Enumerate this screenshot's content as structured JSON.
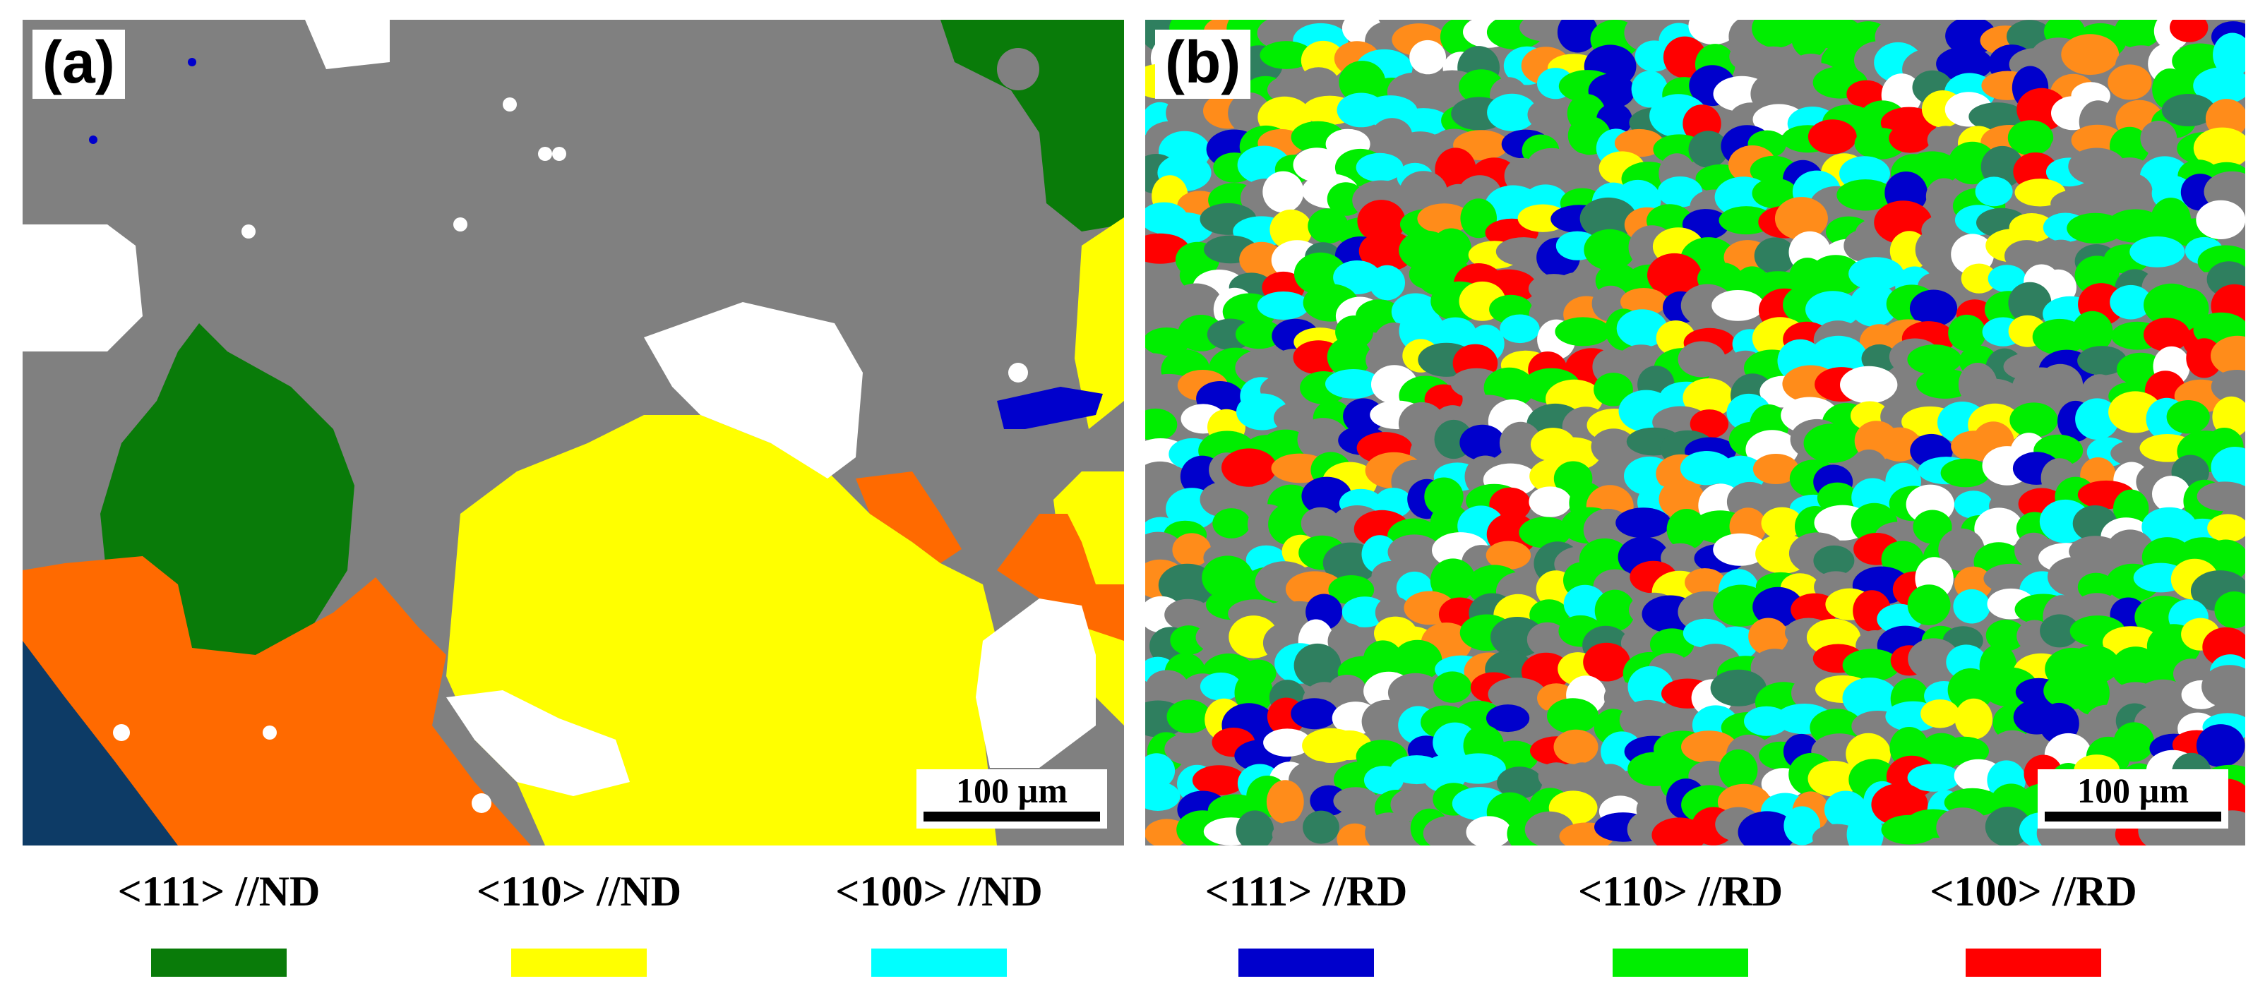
{
  "panels": [
    {
      "label": "(a)",
      "scale_label": "100 µm"
    },
    {
      "label": "(b)",
      "scale_label": "100 µm"
    }
  ],
  "colors": {
    "dark_green": "#097b09",
    "yellow": "#ffff00",
    "cyan": "#00ffff",
    "blue": "#0000cc",
    "green": "#00ee00",
    "red": "#ff0000",
    "orange": "#ff6a00",
    "gray": "#808080",
    "white": "#ffffff",
    "navy": "#0d3b66",
    "light_orange": "#ff8c1a",
    "teal_dark": "#2f7f5f"
  },
  "legend": [
    {
      "label": "<111> //ND",
      "color": "#097b09"
    },
    {
      "label": "<110> //ND",
      "color": "#ffff00"
    },
    {
      "label": "<100> //ND",
      "color": "#00ffff"
    },
    {
      "label": "<111> //RD",
      "color": "#0000cc"
    },
    {
      "label": "<110> //RD",
      "color": "#00ee00"
    },
    {
      "label": "<100> //RD",
      "color": "#ff0000"
    }
  ]
}
